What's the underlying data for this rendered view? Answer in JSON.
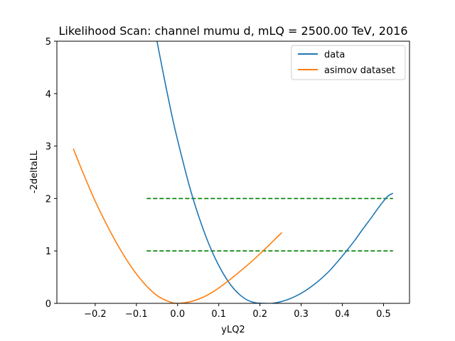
{
  "chart_data": {
    "type": "line",
    "title": "Likelihood Scan: channel mumu d, mLQ = 2500.00 TeV, 2016",
    "xlabel": "yLQ2",
    "ylabel": "-2deltaLL",
    "xlim": [
      -0.293,
      0.563
    ],
    "ylim": [
      0,
      5
    ],
    "xticks": [
      -0.2,
      -0.1,
      0.0,
      0.1,
      0.2,
      0.3,
      0.4,
      0.5
    ],
    "xtick_labels": [
      "−0.2",
      "−0.1",
      "0.0",
      "0.1",
      "0.2",
      "0.3",
      "0.4",
      "0.5"
    ],
    "yticks": [
      0,
      1,
      2,
      3,
      4,
      5
    ],
    "ytick_labels": [
      "0",
      "1",
      "2",
      "3",
      "4",
      "5"
    ],
    "legend_position": "top-right",
    "series": [
      {
        "name": "data",
        "color": "#1f77b4",
        "x": [
          -0.05,
          -0.03,
          -0.01,
          0.01,
          0.03,
          0.05,
          0.07,
          0.09,
          0.11,
          0.13,
          0.15,
          0.17,
          0.19,
          0.21,
          0.23,
          0.25,
          0.27,
          0.29,
          0.31,
          0.33,
          0.35,
          0.37,
          0.39,
          0.41,
          0.43,
          0.45,
          0.47,
          0.49,
          0.51,
          0.523
        ],
        "y": [
          5.0,
          4.2,
          3.45,
          2.8,
          2.2,
          1.69,
          1.25,
          0.88,
          0.58,
          0.34,
          0.17,
          0.06,
          0.01,
          0.0,
          0.0,
          0.03,
          0.08,
          0.15,
          0.24,
          0.35,
          0.48,
          0.63,
          0.81,
          1.0,
          1.2,
          1.42,
          1.63,
          1.85,
          2.04,
          2.1
        ]
      },
      {
        "name": "asimov dataset",
        "color": "#ff7f0e",
        "x": [
          -0.253,
          -0.23,
          -0.2,
          -0.17,
          -0.14,
          -0.11,
          -0.08,
          -0.05,
          -0.02,
          0.0,
          0.03,
          0.06,
          0.09,
          0.12,
          0.15,
          0.18,
          0.21,
          0.24,
          0.253
        ],
        "y": [
          2.95,
          2.5,
          1.95,
          1.47,
          1.04,
          0.67,
          0.37,
          0.15,
          0.03,
          0.0,
          0.03,
          0.11,
          0.24,
          0.41,
          0.6,
          0.8,
          1.02,
          1.25,
          1.35
        ]
      }
    ],
    "reference_lines": [
      {
        "y": 1,
        "x": [
          -0.075,
          0.523
        ],
        "color": "#008000",
        "style": "dashed"
      },
      {
        "y": 2,
        "x": [
          -0.075,
          0.523
        ],
        "color": "#008000",
        "style": "dashed"
      }
    ]
  }
}
